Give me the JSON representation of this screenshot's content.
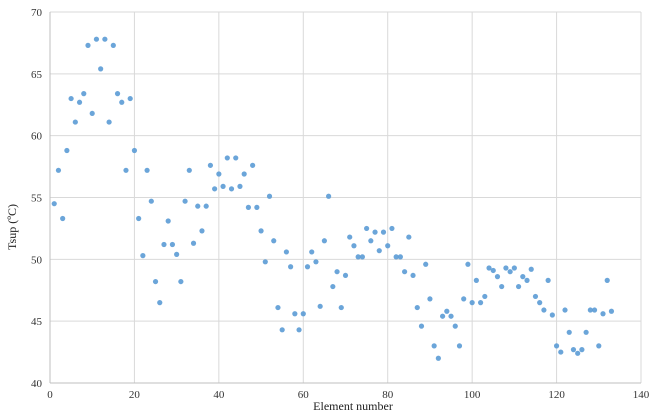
{
  "chart_data": {
    "type": "scatter",
    "title": "",
    "xlabel": "Element number",
    "ylabel": "Tsup (ºC)",
    "xlim": [
      0,
      140
    ],
    "ylim": [
      40,
      70
    ],
    "xticks": [
      0,
      20,
      40,
      60,
      80,
      100,
      120,
      140
    ],
    "yticks": [
      40,
      45,
      50,
      55,
      60,
      65,
      70
    ],
    "grid": true,
    "legend": "none",
    "marker_color": "#5b9bd5",
    "points": [
      [
        1,
        54.5
      ],
      [
        2,
        57.2
      ],
      [
        3,
        53.3
      ],
      [
        4,
        58.8
      ],
      [
        5,
        63.0
      ],
      [
        6,
        61.1
      ],
      [
        7,
        62.7
      ],
      [
        8,
        63.4
      ],
      [
        9,
        67.3
      ],
      [
        10,
        61.8
      ],
      [
        11,
        67.8
      ],
      [
        12,
        65.4
      ],
      [
        13,
        67.8
      ],
      [
        14,
        61.1
      ],
      [
        15,
        67.3
      ],
      [
        16,
        63.4
      ],
      [
        17,
        62.7
      ],
      [
        18,
        57.2
      ],
      [
        19,
        63.0
      ],
      [
        20,
        58.8
      ],
      [
        21,
        53.3
      ],
      [
        22,
        50.3
      ],
      [
        23,
        57.2
      ],
      [
        24,
        54.7
      ],
      [
        25,
        48.2
      ],
      [
        26,
        46.5
      ],
      [
        27,
        51.2
      ],
      [
        28,
        53.1
      ],
      [
        29,
        51.2
      ],
      [
        30,
        50.4
      ],
      [
        31,
        48.2
      ],
      [
        32,
        54.7
      ],
      [
        33,
        57.2
      ],
      [
        34,
        51.3
      ],
      [
        35,
        54.3
      ],
      [
        36,
        52.3
      ],
      [
        37,
        54.3
      ],
      [
        38,
        57.6
      ],
      [
        39,
        55.7
      ],
      [
        40,
        56.9
      ],
      [
        41,
        55.9
      ],
      [
        42,
        58.2
      ],
      [
        43,
        55.7
      ],
      [
        44,
        58.2
      ],
      [
        45,
        55.9
      ],
      [
        46,
        56.9
      ],
      [
        47,
        54.2
      ],
      [
        48,
        57.6
      ],
      [
        49,
        54.2
      ],
      [
        50,
        52.3
      ],
      [
        51,
        49.8
      ],
      [
        52,
        55.1
      ],
      [
        53,
        51.5
      ],
      [
        54,
        46.1
      ],
      [
        55,
        44.3
      ],
      [
        56,
        50.6
      ],
      [
        57,
        49.4
      ],
      [
        58,
        45.6
      ],
      [
        59,
        44.3
      ],
      [
        60,
        45.6
      ],
      [
        61,
        49.4
      ],
      [
        62,
        50.6
      ],
      [
        63,
        49.8
      ],
      [
        64,
        46.2
      ],
      [
        65,
        51.5
      ],
      [
        66,
        55.1
      ],
      [
        67,
        47.8
      ],
      [
        68,
        49.0
      ],
      [
        69,
        46.1
      ],
      [
        70,
        48.7
      ],
      [
        71,
        51.8
      ],
      [
        72,
        51.1
      ],
      [
        73,
        50.2
      ],
      [
        74,
        50.2
      ],
      [
        75,
        52.5
      ],
      [
        76,
        51.5
      ],
      [
        77,
        52.2
      ],
      [
        78,
        50.7
      ],
      [
        79,
        52.2
      ],
      [
        80,
        51.1
      ],
      [
        81,
        52.5
      ],
      [
        82,
        50.2
      ],
      [
        83,
        50.2
      ],
      [
        84,
        49.0
      ],
      [
        85,
        51.8
      ],
      [
        86,
        48.7
      ],
      [
        87,
        46.1
      ],
      [
        88,
        44.6
      ],
      [
        89,
        49.6
      ],
      [
        90,
        46.8
      ],
      [
        91,
        43.0
      ],
      [
        92,
        42.0
      ],
      [
        93,
        45.4
      ],
      [
        94,
        45.8
      ],
      [
        95,
        45.4
      ],
      [
        96,
        44.6
      ],
      [
        97,
        43.0
      ],
      [
        98,
        46.8
      ],
      [
        99,
        49.6
      ],
      [
        100,
        46.5
      ],
      [
        101,
        48.3
      ],
      [
        102,
        46.5
      ],
      [
        103,
        47.0
      ],
      [
        104,
        49.3
      ],
      [
        105,
        49.1
      ],
      [
        106,
        48.6
      ],
      [
        107,
        47.8
      ],
      [
        108,
        49.3
      ],
      [
        109,
        49.0
      ],
      [
        110,
        49.3
      ],
      [
        111,
        47.8
      ],
      [
        112,
        48.6
      ],
      [
        113,
        48.3
      ],
      [
        114,
        49.2
      ],
      [
        115,
        47.0
      ],
      [
        116,
        46.5
      ],
      [
        117,
        45.9
      ],
      [
        118,
        48.3
      ],
      [
        119,
        45.5
      ],
      [
        120,
        43.0
      ],
      [
        121,
        42.5
      ],
      [
        122,
        45.9
      ],
      [
        123,
        44.1
      ],
      [
        124,
        42.7
      ],
      [
        125,
        42.4
      ],
      [
        126,
        42.7
      ],
      [
        127,
        44.1
      ],
      [
        128,
        45.9
      ],
      [
        129,
        45.9
      ],
      [
        130,
        43.0
      ],
      [
        131,
        45.6
      ],
      [
        132,
        48.3
      ],
      [
        133,
        45.8
      ]
    ]
  }
}
